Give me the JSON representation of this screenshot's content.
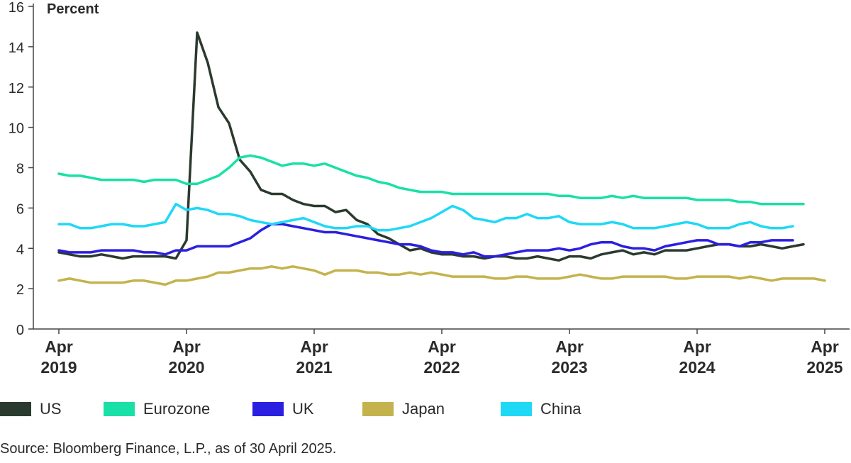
{
  "chart_data": {
    "type": "line",
    "title": "",
    "ylabel": "Percent",
    "xlabel": "",
    "ylim": [
      0,
      16
    ],
    "yticks": [
      0,
      2,
      4,
      6,
      8,
      10,
      12,
      14,
      16
    ],
    "x_start": "2019-04",
    "x_ticks": [
      {
        "month_index": 0,
        "label_month": "Apr",
        "label_year": "2019"
      },
      {
        "month_index": 12,
        "label_month": "Apr",
        "label_year": "2020"
      },
      {
        "month_index": 24,
        "label_month": "Apr",
        "label_year": "2021"
      },
      {
        "month_index": 36,
        "label_month": "Apr",
        "label_year": "2022"
      },
      {
        "month_index": 48,
        "label_month": "Apr",
        "label_year": "2023"
      },
      {
        "month_index": 60,
        "label_month": "Apr",
        "label_year": "2024"
      },
      {
        "month_index": 72,
        "label_month": "Apr",
        "label_year": "2025"
      }
    ],
    "series": [
      {
        "name": "US",
        "color": "#2b3a2f",
        "values": [
          3.8,
          3.7,
          3.6,
          3.6,
          3.7,
          3.6,
          3.5,
          3.6,
          3.6,
          3.6,
          3.6,
          3.5,
          4.4,
          14.7,
          13.2,
          11.0,
          10.2,
          8.4,
          7.8,
          6.9,
          6.7,
          6.7,
          6.4,
          6.2,
          6.1,
          6.1,
          5.8,
          5.9,
          5.4,
          5.2,
          4.7,
          4.5,
          4.2,
          3.9,
          4.0,
          3.8,
          3.7,
          3.7,
          3.6,
          3.6,
          3.5,
          3.6,
          3.6,
          3.5,
          3.5,
          3.6,
          3.5,
          3.4,
          3.6,
          3.6,
          3.5,
          3.7,
          3.8,
          3.9,
          3.7,
          3.8,
          3.7,
          3.9,
          3.9,
          3.9,
          4.0,
          4.1,
          4.2,
          4.2,
          4.1,
          4.1,
          4.2,
          4.1,
          4.0,
          4.1,
          4.2
        ]
      },
      {
        "name": "Eurozone",
        "color": "#19e0a6",
        "values": [
          7.7,
          7.6,
          7.6,
          7.5,
          7.4,
          7.4,
          7.4,
          7.4,
          7.3,
          7.4,
          7.4,
          7.4,
          7.2,
          7.2,
          7.4,
          7.6,
          8.0,
          8.5,
          8.6,
          8.5,
          8.3,
          8.1,
          8.2,
          8.2,
          8.1,
          8.2,
          8.0,
          7.8,
          7.6,
          7.5,
          7.3,
          7.2,
          7.0,
          6.9,
          6.8,
          6.8,
          6.8,
          6.7,
          6.7,
          6.7,
          6.7,
          6.7,
          6.7,
          6.7,
          6.7,
          6.7,
          6.7,
          6.6,
          6.6,
          6.5,
          6.5,
          6.5,
          6.6,
          6.5,
          6.6,
          6.5,
          6.5,
          6.5,
          6.5,
          6.5,
          6.4,
          6.4,
          6.4,
          6.4,
          6.3,
          6.3,
          6.2,
          6.2,
          6.2,
          6.2,
          6.2
        ]
      },
      {
        "name": "UK",
        "color": "#2b1fe0",
        "values": [
          3.9,
          3.8,
          3.8,
          3.8,
          3.9,
          3.9,
          3.9,
          3.9,
          3.8,
          3.8,
          3.7,
          3.9,
          3.9,
          4.1,
          4.1,
          4.1,
          4.1,
          4.3,
          4.5,
          4.9,
          5.2,
          5.2,
          5.1,
          5.0,
          4.9,
          4.8,
          4.8,
          4.7,
          4.6,
          4.5,
          4.4,
          4.3,
          4.2,
          4.2,
          4.1,
          3.9,
          3.8,
          3.8,
          3.7,
          3.8,
          3.6,
          3.6,
          3.7,
          3.8,
          3.9,
          3.9,
          3.9,
          4.0,
          3.9,
          4.0,
          4.2,
          4.3,
          4.3,
          4.1,
          4.0,
          4.0,
          3.9,
          4.1,
          4.2,
          4.3,
          4.4,
          4.4,
          4.2,
          4.2,
          4.1,
          4.3,
          4.3,
          4.4,
          4.4,
          4.4
        ]
      },
      {
        "name": "Japan",
        "color": "#c4b34d",
        "values": [
          2.4,
          2.5,
          2.4,
          2.3,
          2.3,
          2.3,
          2.3,
          2.4,
          2.4,
          2.3,
          2.2,
          2.4,
          2.4,
          2.5,
          2.6,
          2.8,
          2.8,
          2.9,
          3.0,
          3.0,
          3.1,
          3.0,
          3.1,
          3.0,
          2.9,
          2.7,
          2.9,
          2.9,
          2.9,
          2.8,
          2.8,
          2.7,
          2.7,
          2.8,
          2.7,
          2.8,
          2.7,
          2.6,
          2.6,
          2.6,
          2.6,
          2.5,
          2.5,
          2.6,
          2.6,
          2.5,
          2.5,
          2.5,
          2.6,
          2.7,
          2.6,
          2.5,
          2.5,
          2.6,
          2.6,
          2.6,
          2.6,
          2.6,
          2.5,
          2.5,
          2.6,
          2.6,
          2.6,
          2.6,
          2.5,
          2.6,
          2.5,
          2.4,
          2.5,
          2.5,
          2.5,
          2.5,
          2.4
        ]
      },
      {
        "name": "China",
        "color": "#1fd8f5",
        "values": [
          5.2,
          5.2,
          5.0,
          5.0,
          5.1,
          5.2,
          5.2,
          5.1,
          5.1,
          5.2,
          5.3,
          6.2,
          5.9,
          6.0,
          5.9,
          5.7,
          5.7,
          5.6,
          5.4,
          5.3,
          5.2,
          5.3,
          5.4,
          5.5,
          5.3,
          5.1,
          5.0,
          5.0,
          5.1,
          5.1,
          4.9,
          4.9,
          5.0,
          5.1,
          5.3,
          5.5,
          5.8,
          6.1,
          5.9,
          5.5,
          5.4,
          5.3,
          5.5,
          5.5,
          5.7,
          5.5,
          5.5,
          5.6,
          5.3,
          5.2,
          5.2,
          5.2,
          5.3,
          5.2,
          5.0,
          5.0,
          5.0,
          5.1,
          5.2,
          5.3,
          5.2,
          5.0,
          5.0,
          5.0,
          5.2,
          5.3,
          5.1,
          5.0,
          5.0,
          5.1
        ]
      }
    ]
  },
  "source": "Source: Bloomberg Finance, L.P., as of 30 April 2025."
}
